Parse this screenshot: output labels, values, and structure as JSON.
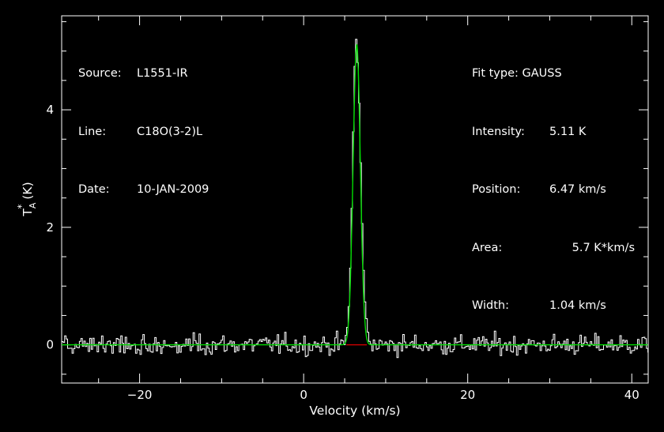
{
  "chart_data": {
    "type": "line",
    "xlabel": "Velocity (km/s)",
    "ylabel_main": "T",
    "ylabel_sub": "A",
    "ylabel_sup": "*",
    "ylabel_unit": "(K)",
    "xlim": [
      -29.5,
      42
    ],
    "ylim": [
      -0.65,
      5.6
    ],
    "x_ticks": [
      -20,
      0,
      20,
      40
    ],
    "y_ticks": [
      0,
      2,
      4
    ],
    "grid": false,
    "noise_rms": 0.12,
    "channel_width_kms": 0.18,
    "baseline_fit": {
      "x_start": 5.2,
      "x_end": 7.7,
      "value": 0
    },
    "series": [
      {
        "kind": "spectrum",
        "color": "#ffffff",
        "points": [
          [
            5.0,
            0.05
          ],
          [
            5.4,
            0.35
          ],
          [
            5.6,
            0.9
          ],
          [
            5.8,
            1.8
          ],
          [
            6.0,
            3.3
          ],
          [
            6.2,
            4.6
          ],
          [
            6.35,
            5.3
          ],
          [
            6.5,
            5.05
          ],
          [
            6.7,
            4.5
          ],
          [
            6.9,
            3.4
          ],
          [
            7.1,
            2.2
          ],
          [
            7.3,
            1.3
          ],
          [
            7.5,
            0.7
          ],
          [
            7.7,
            0.4
          ],
          [
            7.9,
            0.15
          ]
        ]
      },
      {
        "kind": "gaussian_fit",
        "color": "#00dd00",
        "amplitude": 5.11,
        "center": 6.47,
        "fwhm": 1.04
      }
    ]
  },
  "info_left": {
    "source_label": "Source:",
    "source_value": "L1551-IR",
    "line_label": "Line:",
    "line_value": "C18O(3-2)L",
    "date_label": "Date:",
    "date_value": "10-JAN-2009"
  },
  "info_right": {
    "fit_type": "Fit type: GAUSS",
    "intensity_label": "Intensity:",
    "intensity_value": "5.11 K",
    "position_label": "Position:",
    "position_value": "6.47 km/s",
    "area_label": "Area:",
    "area_value": "5.7 K*km/s",
    "width_label": "Width:",
    "width_value": "1.04 km/s"
  }
}
